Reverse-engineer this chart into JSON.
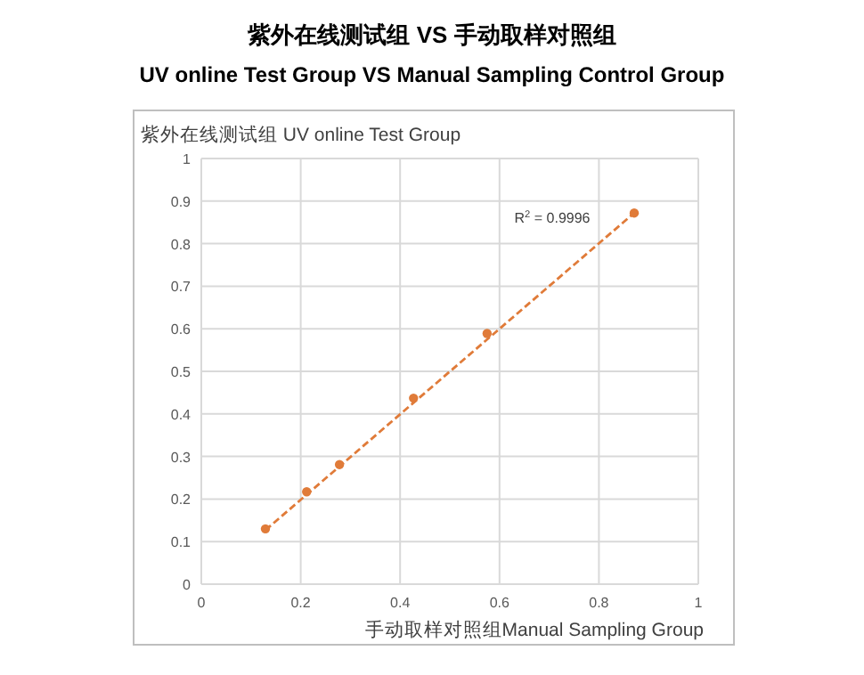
{
  "chart_data": {
    "type": "scatter",
    "title": "紫外在线测试组 VS 手动取样对照组",
    "subtitle": "UV online Test Group VS Manual Sampling Control Group",
    "xlabel": "手动取样对照组Manual Sampling Group",
    "ylabel": "紫外在线测试组  UV online Test Group",
    "annotations": [
      "R$^{2}$ = 0.9996"
    ],
    "xlim": [
      0,
      1
    ],
    "ylim": [
      0,
      1
    ],
    "xticks": [
      0,
      0.2,
      0.4,
      0.6,
      0.8,
      1
    ],
    "yticks": [
      0,
      0.1,
      0.2,
      0.3,
      0.4,
      0.5,
      0.6,
      0.7,
      0.8,
      0.9,
      1
    ],
    "grid": true,
    "marker": "circle",
    "series": [
      {
        "color": "#e07b39",
        "x": [
          0.129,
          0.212,
          0.278,
          0.427,
          0.575,
          0.871
        ],
        "values": [
          0.13,
          0.217,
          0.281,
          0.437,
          0.589,
          0.872
        ]
      },
      {
        "type": "line",
        "line_style": "dashed",
        "marker": "none",
        "color": "#e07b39",
        "x": [
          0.129,
          0.871
        ],
        "values": [
          0.127,
          0.872
        ]
      }
    ]
  }
}
